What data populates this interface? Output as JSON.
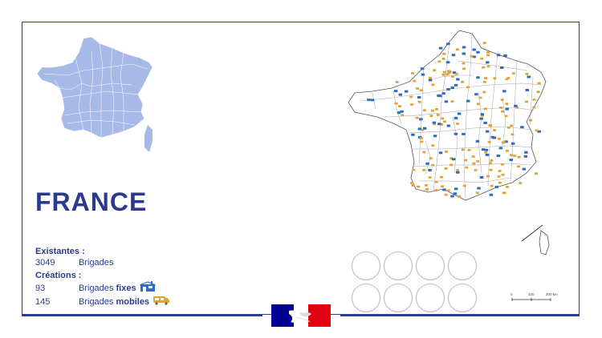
{
  "country": {
    "name": "FRANCE"
  },
  "stats": {
    "existing": {
      "heading": "Existantes :",
      "count": "3049",
      "label": "Brigades"
    },
    "creations": {
      "heading": "Créations :",
      "fixed": {
        "count": "93",
        "label_prefix": "Brigades",
        "label_bold": "fixes",
        "icon": "fixed-brigade-icon"
      },
      "mobile": {
        "count": "145",
        "label_prefix": "Brigades",
        "label_bold": "mobiles",
        "icon": "mobile-brigade-van-icon"
      }
    }
  },
  "scale": {
    "ticks": [
      "0",
      "100",
      "200 km"
    ]
  },
  "colors": {
    "navy": "#2b3a8f",
    "map_fill": "#a7b9e6",
    "fixed": "#2f6bbf",
    "mobile": "#e0a53a",
    "marianne_blue": "#000091",
    "marianne_red": "#e1000f"
  }
}
